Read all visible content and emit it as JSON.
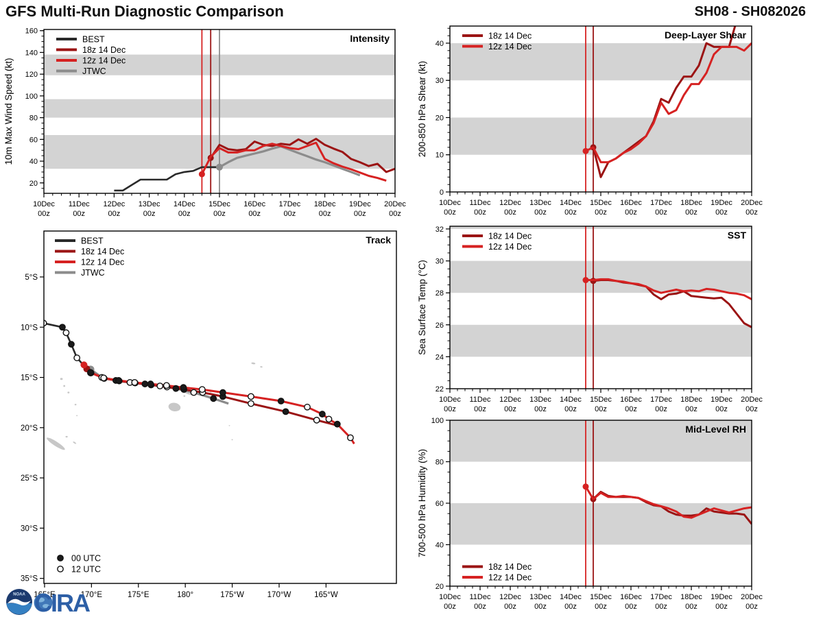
{
  "header": {
    "title_left": "GFS Multi-Run Diagnostic Comparison",
    "title_right": "SH08 - SH082026"
  },
  "logos": {
    "noaa_label": "NOAA",
    "cira_label": "CIRA"
  },
  "colors": {
    "best": "#2a2a2a",
    "r18": "#9b1414",
    "r12": "#d62222",
    "jtwc": "#8c8c8c",
    "band": "#d3d3d3",
    "land": "#c7c7c7",
    "frame": "#000000",
    "noaa_navy": "#1c3a6e",
    "noaa_blue": "#3580c2",
    "cira_blue": "#2d5fa6",
    "globe_blue": "#4178b8"
  },
  "chart_data": {
    "type": "line",
    "x_unit": "day of December (UTC), fractions are hours",
    "time_axis": {
      "days": [
        "10Dec",
        "11Dec",
        "12Dec",
        "13Dec",
        "14Dec",
        "15Dec",
        "16Dec",
        "17Dec",
        "18Dec",
        "19Dec",
        "20Dec"
      ],
      "day_values": [
        10,
        11,
        12,
        13,
        14,
        15,
        16,
        17,
        18,
        19,
        20
      ],
      "sub_label": "00z",
      "minor_step": 0.25
    },
    "panels": {
      "intensity": {
        "title": "Intensity",
        "ylabel": "10m Max Wind Speed (kt)",
        "ymin": 10.4,
        "ymax": 161.1,
        "yticks": [
          20,
          40,
          60,
          80,
          100,
          120,
          140,
          160
        ],
        "yminor": 5,
        "bands": [
          [
            33,
            64
          ],
          [
            80,
            97
          ],
          [
            119,
            138
          ]
        ],
        "vlines": [
          {
            "t": 14.5,
            "c": "r12"
          },
          {
            "t": 14.75,
            "c": "r18"
          },
          {
            "t": 15.0,
            "c": "jtwc"
          }
        ],
        "legend": {
          "pos": "tl",
          "items": [
            [
              "best",
              "BEST"
            ],
            [
              "r18",
              "18z 14 Dec"
            ],
            [
              "r12",
              "12z 14 Dec"
            ],
            [
              "jtwc",
              "JTWC"
            ]
          ]
        },
        "series": [
          {
            "c": "best",
            "lw": 2.6,
            "t0": 12.0,
            "dt": 0.25,
            "v": [
              13,
              13,
              18,
              23,
              23,
              23,
              23,
              28,
              30,
              31,
              34.5,
              34.5,
              34.5
            ]
          },
          {
            "c": "jtwc",
            "lw": 3.2,
            "dot0": true,
            "t0": 15.0,
            "dt": 0.25,
            "v": [
              34.5,
              39,
              43,
              45,
              47,
              49,
              51.5,
              53.5,
              50.5,
              47.5,
              44.5,
              41.5,
              39,
              36,
              33,
              30,
              27
            ]
          },
          {
            "c": "r18",
            "lw": 3,
            "dot0": true,
            "t0": 14.75,
            "dt": 0.25,
            "v": [
              43,
              55,
              51,
              50,
              51,
              58,
              55,
              54,
              56,
              55,
              60,
              56,
              60.5,
              55,
              51.5,
              48.5,
              42,
              39,
              35.5,
              37.5,
              30,
              33
            ]
          },
          {
            "c": "r12",
            "lw": 3,
            "dot0": true,
            "t0": 14.5,
            "dt": 0.25,
            "v": [
              28,
              44,
              52,
              48,
              48,
              50,
              50,
              54,
              56,
              54,
              52,
              51,
              54,
              57,
              42,
              38,
              35,
              32.5,
              29.5,
              26.5,
              24.5,
              22
            ]
          }
        ]
      },
      "shear": {
        "title": "Deep-Layer Shear",
        "ylabel": "200-850 hPa Shear (kt)",
        "ymin": 0,
        "ymax": 44.6,
        "yticks": [
          0,
          10,
          20,
          30,
          40
        ],
        "yminor": 2,
        "bands": [
          [
            10,
            20
          ],
          [
            30,
            40
          ]
        ],
        "vlines": [
          {
            "t": 14.5,
            "c": "r12"
          },
          {
            "t": 14.75,
            "c": "r18"
          }
        ],
        "legend": {
          "pos": "tl",
          "items": [
            [
              "r18",
              "18z 14 Dec"
            ],
            [
              "r12",
              "12z 14 Dec"
            ]
          ]
        },
        "series": [
          {
            "c": "r18",
            "lw": 3,
            "dot0": true,
            "t0": 14.75,
            "dt": 0.25,
            "v": [
              12,
              4,
              8,
              9,
              10.5,
              12,
              13.5,
              15,
              19,
              25,
              24,
              28,
              31,
              31,
              34,
              40,
              39,
              39,
              39,
              46
            ]
          },
          {
            "c": "r12",
            "lw": 3,
            "dot0": true,
            "t0": 14.5,
            "dt": 0.25,
            "v": [
              11,
              12,
              8,
              8,
              9,
              10.5,
              11.5,
              13,
              15,
              18.5,
              24,
              21,
              22,
              26,
              29,
              29,
              32,
              37,
              39,
              39,
              39,
              38,
              40
            ]
          }
        ]
      },
      "sst": {
        "title": "SST",
        "ylabel": "Sea Surface Temp (°C)",
        "ymin": 22,
        "ymax": 32.17,
        "yticks": [
          22,
          24,
          26,
          28,
          30,
          32
        ],
        "yminor": 0.5,
        "bands": [
          [
            24,
            26
          ],
          [
            28,
            30
          ],
          [
            32,
            32.17
          ]
        ],
        "vlines": [
          {
            "t": 14.5,
            "c": "r12"
          },
          {
            "t": 14.75,
            "c": "r18"
          }
        ],
        "legend": {
          "pos": "tl",
          "items": [
            [
              "r18",
              "18z 14 Dec"
            ],
            [
              "r12",
              "12z 14 Dec"
            ]
          ]
        },
        "series": [
          {
            "c": "r18",
            "lw": 3,
            "dot0": true,
            "t0": 14.75,
            "dt": 0.25,
            "v": [
              28.75,
              28.8,
              28.8,
              28.75,
              28.65,
              28.6,
              28.5,
              28.4,
              27.9,
              27.6,
              27.9,
              27.95,
              28.1,
              27.8,
              27.75,
              27.7,
              27.65,
              27.7,
              27.3,
              26.7,
              26.1,
              25.85
            ]
          },
          {
            "c": "r12",
            "lw": 3,
            "dot0": true,
            "t0": 14.5,
            "dt": 0.25,
            "v": [
              28.8,
              28.8,
              28.85,
              28.85,
              28.75,
              28.7,
              28.6,
              28.55,
              28.4,
              28.15,
              28.0,
              28.1,
              28.2,
              28.1,
              28.15,
              28.1,
              28.25,
              28.2,
              28.1,
              28.0,
              27.95,
              27.85,
              27.6
            ]
          }
        ]
      },
      "rh": {
        "title": "Mid-Level RH",
        "ylabel": "700-500 hPa Humidity (%)",
        "ymin": 20,
        "ymax": 100,
        "yticks": [
          20,
          40,
          60,
          80,
          100
        ],
        "yminor": 5,
        "bands": [
          [
            40,
            60
          ],
          [
            80,
            100
          ]
        ],
        "vlines": [
          {
            "t": 14.5,
            "c": "r12"
          },
          {
            "t": 14.75,
            "c": "r18"
          }
        ],
        "legend": {
          "pos": "bl",
          "items": [
            [
              "r18",
              "18z 14 Dec"
            ],
            [
              "r12",
              "12z 14 Dec"
            ]
          ]
        },
        "series": [
          {
            "c": "r18",
            "lw": 3,
            "dot0": true,
            "t0": 14.75,
            "dt": 0.25,
            "v": [
              62,
              65.5,
              63.5,
              63,
              63,
              63,
              62.5,
              60.5,
              59,
              58.5,
              56,
              54.5,
              54,
              54,
              54.5,
              57.5,
              56,
              55.5,
              55,
              55,
              54.5,
              50
            ]
          },
          {
            "c": "r12",
            "lw": 3,
            "dot0": true,
            "t0": 14.5,
            "dt": 0.25,
            "v": [
              68,
              62,
              65,
              63,
              63,
              63.5,
              63,
              62.5,
              61,
              59.5,
              58.5,
              57.5,
              56,
              53.5,
              53,
              54.5,
              56,
              57.5,
              56.5,
              55.5,
              56.5,
              57.5,
              58
            ]
          }
        ]
      }
    },
    "map": {
      "title": "Track",
      "lon_range": [
        164.93,
        202.5
      ],
      "lat_range": [
        0.43,
        35.5
      ],
      "lon_ticks": [
        {
          "v": 165,
          "l": "165°E"
        },
        {
          "v": 170,
          "l": "170°E"
        },
        {
          "v": 175,
          "l": "175°E"
        },
        {
          "v": 180,
          "l": "180°"
        },
        {
          "v": 185,
          "l": "175°W"
        },
        {
          "v": 190,
          "l": "170°W"
        },
        {
          "v": 195,
          "l": "165°W"
        }
      ],
      "lat_ticks": [
        {
          "v": 5,
          "l": "5°S"
        },
        {
          "v": 10,
          "l": "10°S"
        },
        {
          "v": 15,
          "l": "15°S"
        },
        {
          "v": 20,
          "l": "20°S"
        },
        {
          "v": 25,
          "l": "25°S"
        },
        {
          "v": 30,
          "l": "30°S"
        },
        {
          "v": 35,
          "l": "35°S"
        }
      ],
      "legend": {
        "items": [
          [
            "best",
            "BEST"
          ],
          [
            "r18",
            "18z 14 Dec"
          ],
          [
            "r12",
            "12z 14 Dec"
          ],
          [
            "jtwc",
            "JTWC"
          ]
        ]
      },
      "marker_legend": [
        {
          "type": "f",
          "label": "00 UTC"
        },
        {
          "type": "o",
          "label": "12 UTC"
        }
      ],
      "land": [
        {
          "lon": 166.2,
          "lat": 21.6,
          "rx": 1.15,
          "ry": 0.22,
          "rot": 33
        },
        {
          "lon": 167.35,
          "lat": 20.9,
          "rx": 0.12,
          "ry": 0.08,
          "rot": 0
        },
        {
          "lon": 168.2,
          "lat": 21.5,
          "rx": 0.2,
          "ry": 0.07,
          "rot": 33
        },
        {
          "lon": 166.8,
          "lat": 15.15,
          "rx": 0.14,
          "ry": 0.1,
          "rot": 0
        },
        {
          "lon": 167.1,
          "lat": 15.85,
          "rx": 0.1,
          "ry": 0.09,
          "rot": 0
        },
        {
          "lon": 167.55,
          "lat": 16.5,
          "rx": 0.11,
          "ry": 0.09,
          "rot": 0
        },
        {
          "lon": 168.3,
          "lat": 17.7,
          "rx": 0.1,
          "ry": 0.08,
          "rot": 0
        },
        {
          "lon": 168.45,
          "lat": 18.8,
          "rx": 0.07,
          "ry": 0.06,
          "rot": 0
        },
        {
          "lon": 178.85,
          "lat": 17.95,
          "rx": 0.65,
          "ry": 0.42,
          "rot": 10
        },
        {
          "lon": 180.3,
          "lat": 16.5,
          "rx": 0.55,
          "ry": 0.17,
          "rot": 20
        },
        {
          "lon": 179.9,
          "lat": 16.85,
          "rx": 0.1,
          "ry": 0.08,
          "rot": 0
        },
        {
          "lon": 182.7,
          "lat": 16.45,
          "rx": 0.1,
          "ry": 0.06,
          "rot": 0
        },
        {
          "lon": 187.25,
          "lat": 13.6,
          "rx": 0.22,
          "ry": 0.09,
          "rot": 8
        },
        {
          "lon": 188.1,
          "lat": 13.95,
          "rx": 0.13,
          "ry": 0.07,
          "rot": 8
        },
        {
          "lon": 185.0,
          "lat": 21.2,
          "rx": 0.08,
          "ry": 0.06,
          "rot": 0
        },
        {
          "lon": 184.7,
          "lat": 19.8,
          "rx": 0.07,
          "ry": 0.05,
          "rot": 0
        }
      ],
      "tracks": [
        {
          "c": "best",
          "lw": 2.6,
          "pts": [
            [
              164.9,
              9.6,
              "o"
            ],
            [
              166.9,
              10.0,
              "f"
            ],
            [
              167.3,
              10.55,
              "o"
            ],
            [
              167.85,
              11.7,
              "f"
            ],
            [
              168.45,
              13.05,
              "o"
            ],
            [
              169.9,
              14.55,
              "f"
            ]
          ]
        },
        {
          "c": "jtwc",
          "lw": 3.4,
          "pts": [
            [
              169.9,
              14.2,
              "dot"
            ],
            [
              171.1,
              15.0,
              "o"
            ],
            [
              172.6,
              15.3,
              "f"
            ],
            [
              174.1,
              15.5,
              "o"
            ],
            [
              175.7,
              15.65,
              "f"
            ],
            [
              177.3,
              15.85,
              "o"
            ],
            [
              179.0,
              16.1,
              "f"
            ],
            [
              180.9,
              16.5,
              "o"
            ],
            [
              183.0,
              17.1,
              "f"
            ],
            [
              184.6,
              17.6,
              ""
            ]
          ]
        },
        {
          "c": "r18",
          "lw": 3,
          "pts": [
            [
              169.5,
              14.15,
              "dot"
            ],
            [
              169.95,
              14.55,
              "f"
            ],
            [
              171.35,
              15.1,
              "o"
            ],
            [
              172.95,
              15.35,
              "f"
            ],
            [
              174.65,
              15.55,
              "o"
            ],
            [
              176.35,
              15.75,
              "f"
            ],
            [
              178.05,
              15.95,
              "o"
            ],
            [
              179.85,
              16.2,
              "f"
            ],
            [
              181.85,
              16.5,
              "o"
            ],
            [
              184.0,
              16.9,
              "f"
            ],
            [
              187.0,
              17.6,
              "o"
            ],
            [
              190.7,
              18.4,
              "f"
            ],
            [
              194.0,
              19.25,
              "o"
            ],
            [
              196.3,
              19.8,
              ""
            ]
          ]
        },
        {
          "c": "r12",
          "lw": 3,
          "pts": [
            [
              169.2,
              13.75,
              "dot"
            ],
            [
              169.9,
              14.5,
              "f"
            ],
            [
              171.3,
              15.05,
              "o"
            ],
            [
              172.9,
              15.3,
              "f"
            ],
            [
              174.6,
              15.5,
              "o"
            ],
            [
              176.3,
              15.65,
              "f"
            ],
            [
              178.0,
              15.8,
              "o"
            ],
            [
              179.8,
              16.0,
              "f"
            ],
            [
              181.8,
              16.2,
              "o"
            ],
            [
              184.0,
              16.5,
              "f"
            ],
            [
              187.0,
              16.9,
              "o"
            ],
            [
              190.2,
              17.35,
              "f"
            ],
            [
              193.0,
              17.95,
              "o"
            ],
            [
              194.6,
              18.65,
              "f"
            ],
            [
              195.3,
              19.15,
              "o"
            ],
            [
              196.2,
              19.65,
              "f"
            ],
            [
              197.6,
              21.0,
              "o"
            ],
            [
              198.0,
              21.6,
              ""
            ]
          ]
        }
      ]
    }
  }
}
